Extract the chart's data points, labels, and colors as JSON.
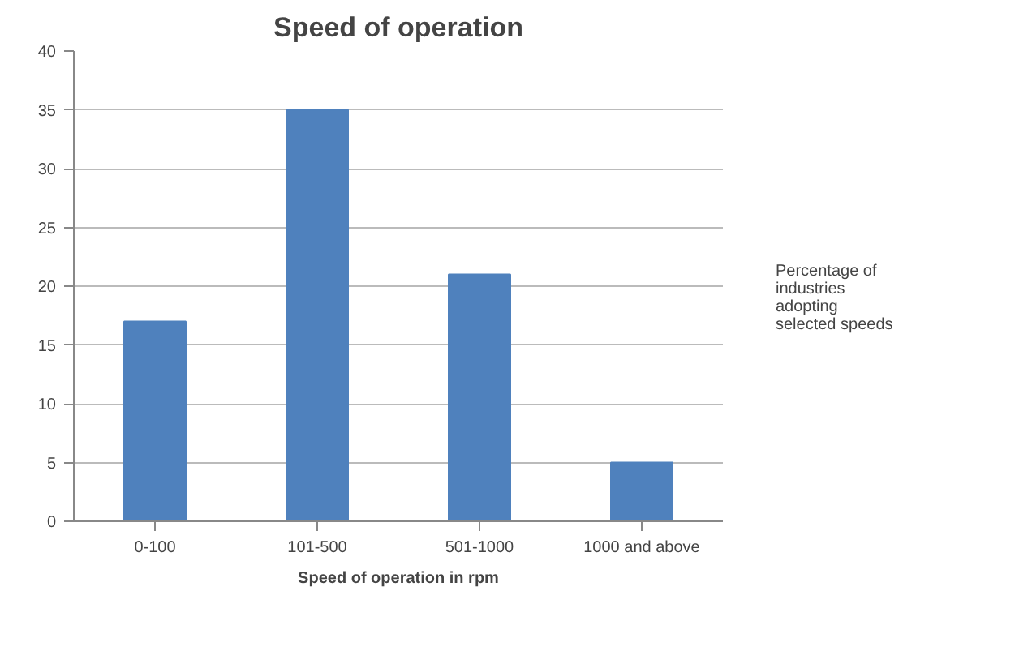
{
  "chart_data": {
    "type": "bar",
    "title": "Speed of operation",
    "xlabel": "Speed of operation in rpm",
    "categories": [
      "0-100",
      "101-500",
      "501-1000",
      "1000 and above"
    ],
    "series": [
      {
        "name": "Percentage of industries adopting selected speeds",
        "color": "#4f81bd",
        "values": [
          17,
          35,
          21,
          5
        ]
      }
    ],
    "ylim": [
      0,
      40
    ],
    "yticks": [
      0,
      5,
      10,
      15,
      20,
      25,
      30,
      35,
      40
    ],
    "grid": "y",
    "legend": "right"
  }
}
